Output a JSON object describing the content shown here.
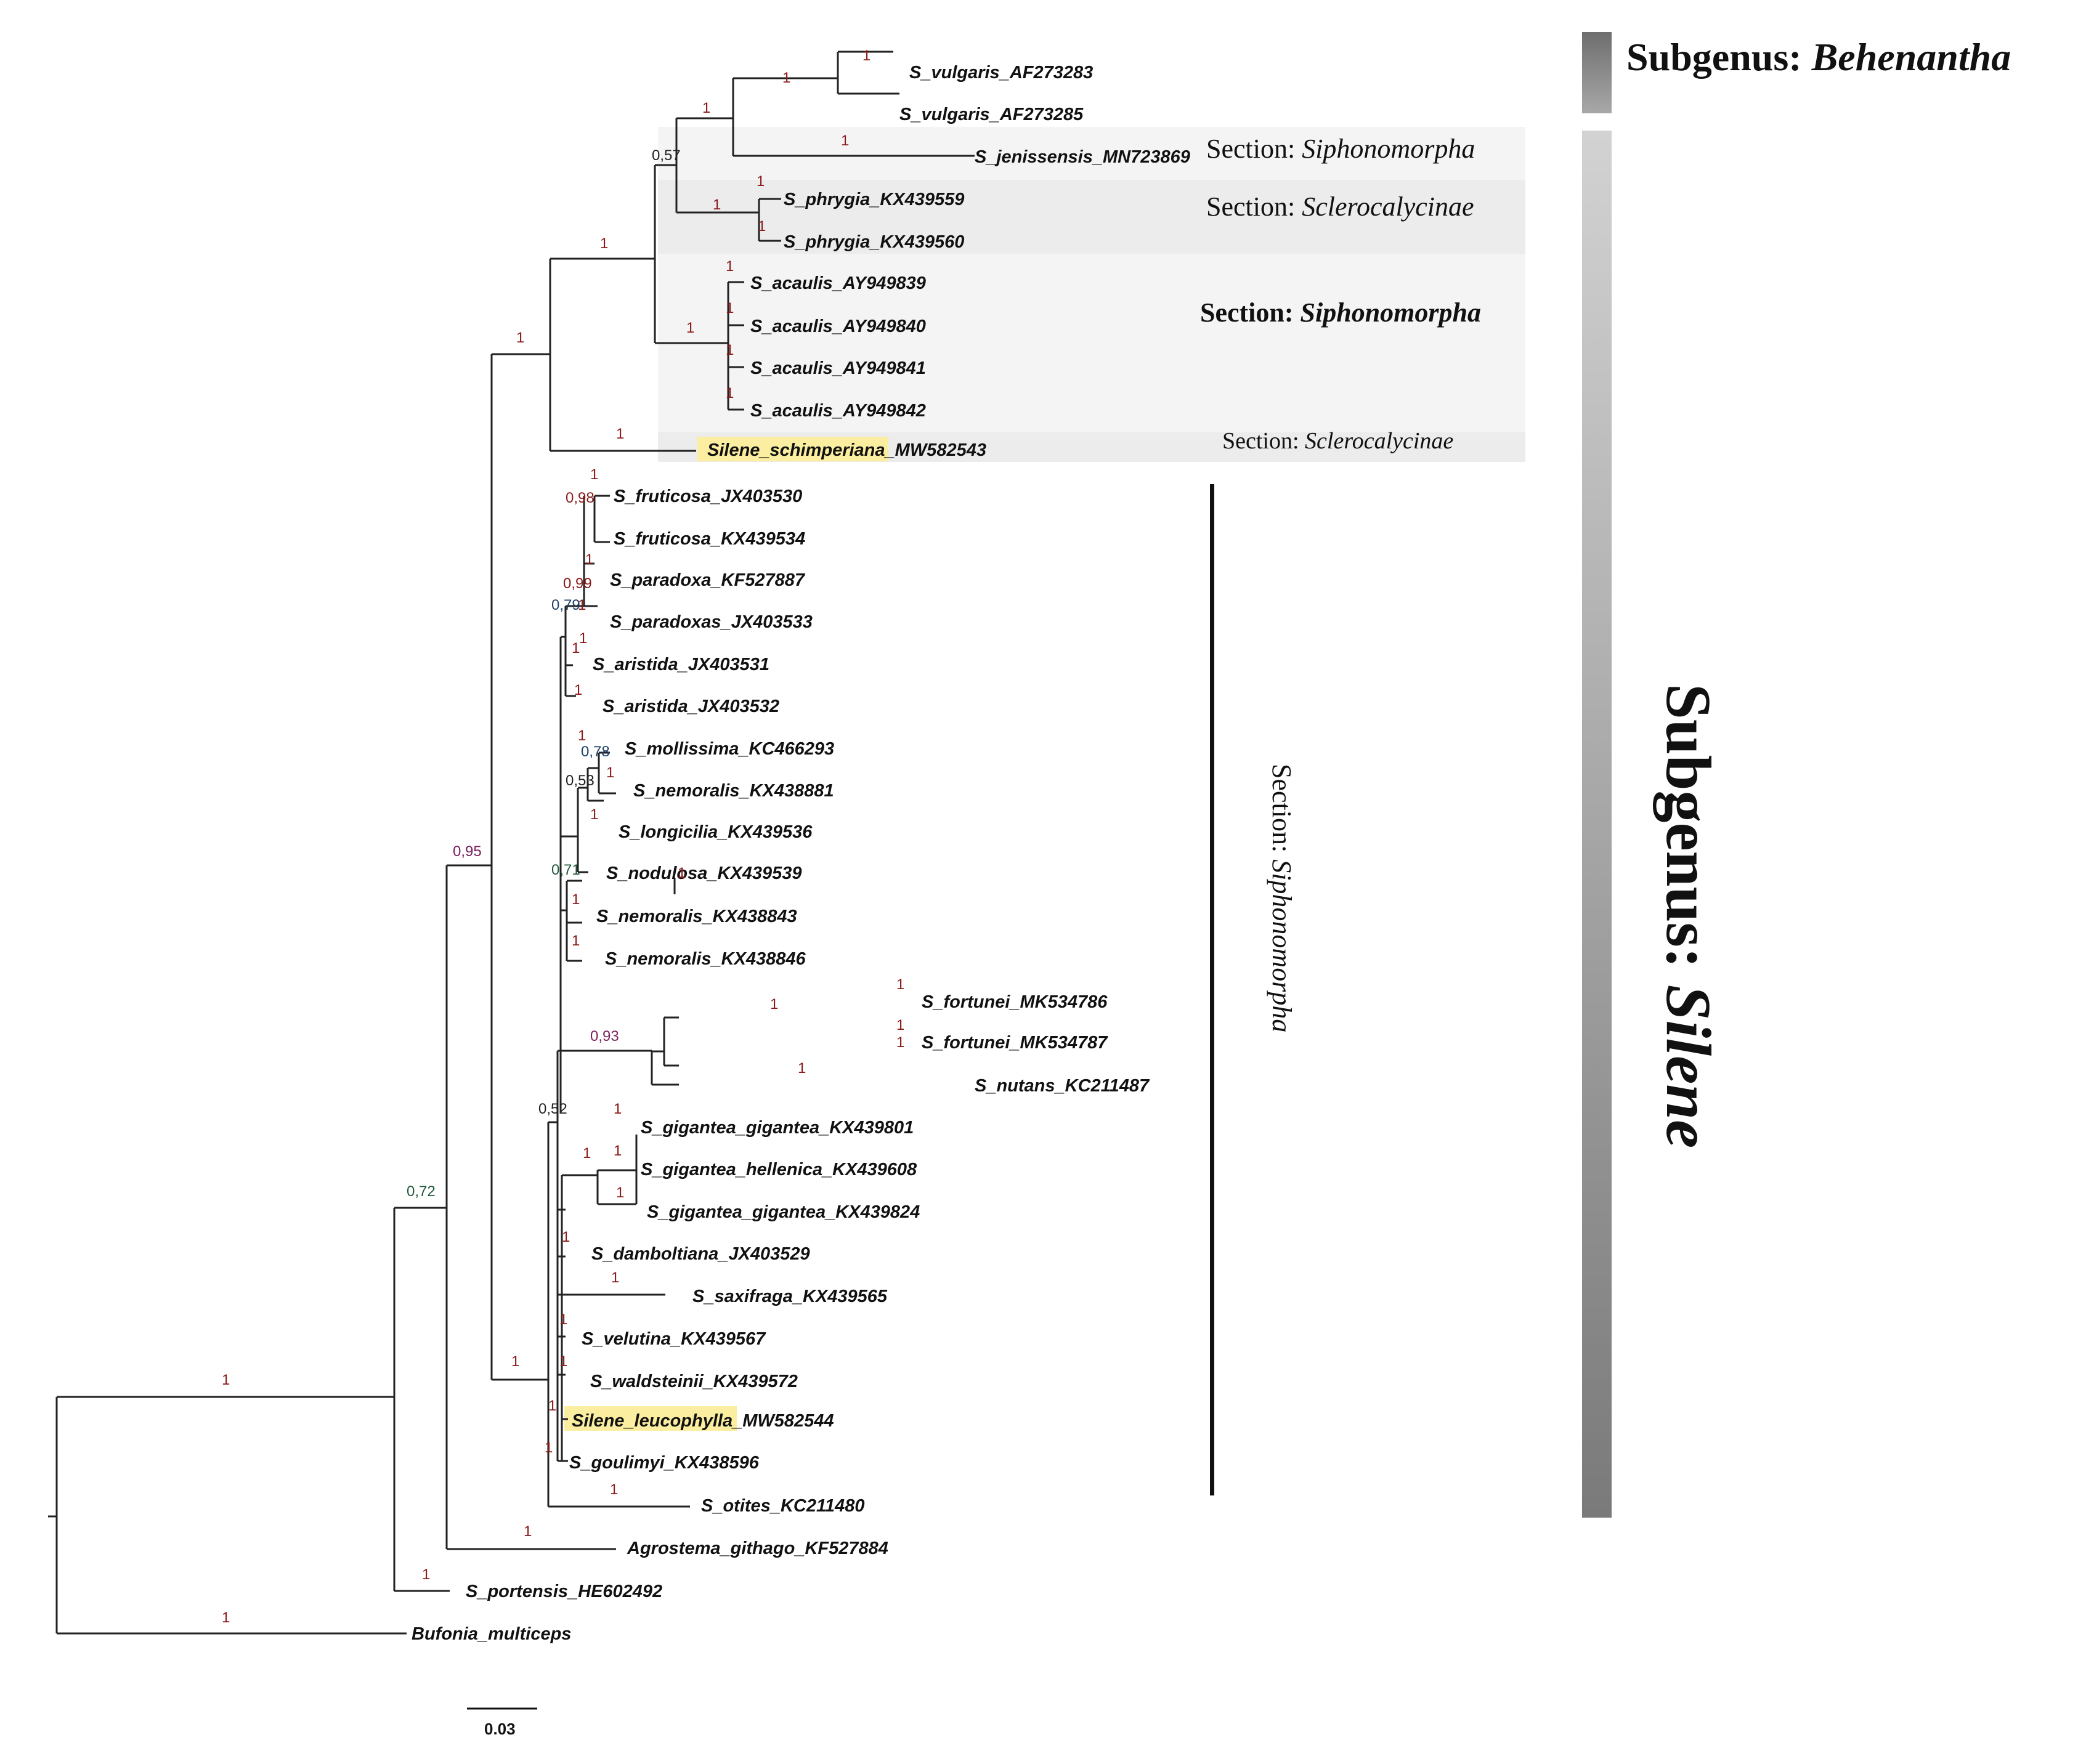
{
  "colors": {
    "support_red": "#8b1a1a",
    "support_purple": "#7a1f5c",
    "support_green": "#1f5a3a",
    "support_blue": "#1f3f6a",
    "support_black": "#222222",
    "highlight": "#fbeea0",
    "band_light": "#f3f3f3",
    "band_mid": "#ebebeb"
  },
  "tips": {
    "vulgaris_1": "S_vulgaris_AF273283",
    "vulgaris_2": "S_vulgaris_AF273285",
    "jenissensis": "S_jenissensis_MN723869",
    "phrygia_1": "S_phrygia_KX439559",
    "phrygia_2": "S_phrygia_KX439560",
    "acaulis_1": "S_acaulis_AY949839",
    "acaulis_2": "S_acaulis_AY949840",
    "acaulis_3": "S_acaulis_AY949841",
    "acaulis_4": "S_acaulis_AY949842",
    "schimperiana_name": "Silene_schimperiana_",
    "schimperiana_acc": "MW582543",
    "fruticosa_1": "S_fruticosa_JX403530",
    "fruticosa_2": "S_fruticosa_KX439534",
    "paradoxa": "S_paradoxa_KF527887",
    "paradoxas": "S_paradoxas_JX403533",
    "aristida_1": "S_aristida_JX403531",
    "aristida_2": "S_aristida_JX403532",
    "mollissima": "S_mollissima_KC466293",
    "nemoralis_1": "S_nemoralis_KX438881",
    "longicilia": "S_longicilia_KX439536",
    "nodulosa": "S_nodulosa_KX439539",
    "nemoralis_2": "S_nemoralis_KX438843",
    "nemoralis_3": "S_nemoralis_KX438846",
    "fortunei_1": "S_fortunei_MK534786",
    "fortunei_2": "S_fortunei_MK534787",
    "nutans": "S_nutans_KC211487",
    "gigantea_1": "S_gigantea_gigantea_KX439801",
    "gigantea_hell": "S_gigantea_hellenica_KX439608",
    "gigantea_2": "S_gigantea_gigantea_KX439824",
    "damboltiana": "S_damboltiana_JX403529",
    "saxifraga": "S_saxifraga_KX439565",
    "velutina": "S_velutina_KX439567",
    "waldsteinii": "S_waldsteinii_KX439572",
    "leucophylla_name": "Silene_leucophylla_",
    "leucophylla_acc": "MW582544",
    "goulimyi": "S_goulimyi_KX438596",
    "otites": "S_otites_KC211480",
    "agrostema": "Agrostema_githago_KF527884",
    "portensis": "S_portensis_HE602492",
    "bufonia": "Bufonia_multiceps"
  },
  "supports": {
    "s1": "1",
    "s2": "1",
    "s3": "1",
    "s4": "0,57",
    "s5": "1",
    "s6": "1",
    "s7": "1",
    "s8": "1",
    "s9": "1",
    "s10": "1",
    "s11": "1",
    "s12": "1",
    "s13": "1",
    "s14": "1",
    "s15": "1",
    "s16": "1",
    "s17": "0,98",
    "s18": "1",
    "s19": "1",
    "s20": "0,99",
    "s21": "0,79",
    "s22": "1",
    "s23": "1",
    "s24": "1",
    "s25": "0,78",
    "s26": "1",
    "s27": "0,53",
    "s28": "1",
    "s29": "0,71",
    "s30": "1",
    "s31": "1",
    "s32": "1",
    "s33": "1",
    "s34": "0,93",
    "s35": "1",
    "s36": "1",
    "s37": "1",
    "s38": "0,52",
    "s39": "1",
    "s40": "1",
    "s41": "1",
    "s42": "1",
    "s43": "1",
    "s44": "1",
    "s45": "1",
    "s46": "1",
    "s47": "1",
    "s48": "1",
    "s49": "1",
    "s50": "1",
    "s51": "1",
    "s52": "1",
    "s53": "0,95",
    "s54": "0,72",
    "s55": "1",
    "s56": "1",
    "s57": "1",
    "s58": "1",
    "s59": "1"
  },
  "annotations": {
    "section_label": "Section: ",
    "siphonomorpha": "Siphonomorpha",
    "sclerocalycinae": "Sclerocalycinae",
    "subgenus_label": "Subgenus",
    "subgenus_colon": ": ",
    "behenantha": "Behenantha",
    "silene": "Silene"
  },
  "scale_bar": {
    "label": "0.03"
  }
}
